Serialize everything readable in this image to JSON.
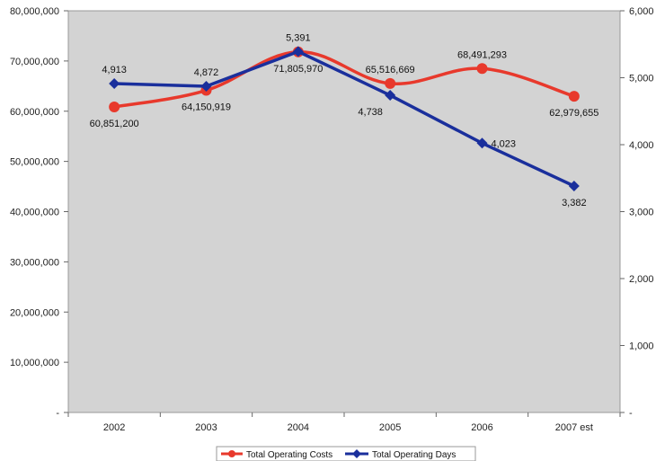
{
  "chart_data": {
    "type": "line",
    "categories": [
      "2002",
      "2003",
      "2004",
      "2005",
      "2006",
      "2007 est"
    ],
    "y_left": {
      "lim": [
        0,
        80000000
      ],
      "ticks": [
        {
          "v": 0,
          "label": "-"
        },
        {
          "v": 10000000,
          "label": "10,000,000"
        },
        {
          "v": 20000000,
          "label": "20,000,000"
        },
        {
          "v": 30000000,
          "label": "30,000,000"
        },
        {
          "v": 40000000,
          "label": "40,000,000"
        },
        {
          "v": 50000000,
          "label": "50,000,000"
        },
        {
          "v": 60000000,
          "label": "60,000,000"
        },
        {
          "v": 70000000,
          "label": "70,000,000"
        },
        {
          "v": 80000000,
          "label": "80,000,000"
        }
      ]
    },
    "y_right": {
      "lim": [
        0,
        6000
      ],
      "ticks": [
        {
          "v": 0,
          "label": "-"
        },
        {
          "v": 1000,
          "label": "1,000"
        },
        {
          "v": 2000,
          "label": "2,000"
        },
        {
          "v": 3000,
          "label": "3,000"
        },
        {
          "v": 4000,
          "label": "4,000"
        },
        {
          "v": 5000,
          "label": "5,000"
        },
        {
          "v": 6000,
          "label": "6,000"
        }
      ]
    },
    "grid": false,
    "legend": "bottom",
    "series": [
      {
        "name": "Total Operating Costs",
        "axis": "left",
        "color": "#e8392c",
        "marker": "circle",
        "values": [
          60851200,
          64150919,
          71805970,
          65516669,
          68491293,
          62979655
        ],
        "labels": [
          "60,851,200",
          "64,150,919",
          "71,805,970",
          "65,516,669",
          "68,491,293",
          "62,979,655"
        ],
        "label_pos": [
          "below",
          "below",
          "below",
          "above",
          "above",
          "below"
        ]
      },
      {
        "name": "Total Operating Days",
        "axis": "right",
        "color": "#1a2f9c",
        "marker": "diamond",
        "values": [
          4913,
          4872,
          5391,
          4738,
          4023,
          3382
        ],
        "labels": [
          "4,913",
          "4,872",
          "5,391",
          "4,738",
          "4,023",
          "3,382"
        ],
        "label_pos": [
          "above",
          "above",
          "above",
          "below-left",
          "right",
          "below"
        ]
      }
    ]
  }
}
